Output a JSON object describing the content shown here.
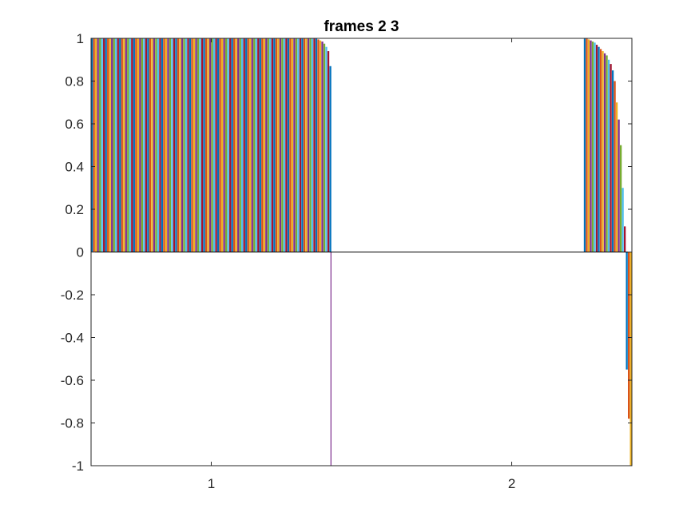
{
  "chart_data": {
    "type": "bar",
    "title": "frames 2 3",
    "xlabel": "",
    "ylabel": "",
    "xlim": [
      0.6,
      2.4
    ],
    "ylim": [
      -1,
      1
    ],
    "xticks": [
      1,
      2
    ],
    "xtick_labels": [
      "1",
      "2"
    ],
    "yticks": [
      -1,
      -0.8,
      -0.6,
      -0.4,
      -0.2,
      0,
      0.2,
      0.4,
      0.6,
      0.8,
      1
    ],
    "ytick_labels": [
      "-1",
      "-0.8",
      "-0.6",
      "-0.4",
      "-0.2",
      "0",
      "0.2",
      "0.4",
      "0.6",
      "0.8",
      "1"
    ],
    "grid": false,
    "legend": "none",
    "colors": [
      "#0072BD",
      "#D95319",
      "#EDB120",
      "#7E2F8E",
      "#77AC30",
      "#4DBEEE",
      "#A2142F"
    ],
    "groups": [
      {
        "category": "1",
        "x_range": [
          0.6,
          1.4
        ],
        "bar_count": 120,
        "plateau_value": 1.0,
        "tail_values": [
          0.995,
          0.99,
          0.985,
          0.975,
          0.96,
          0.94,
          0.87
        ],
        "negative_values": [
          -1.0
        ]
      },
      {
        "category": "2",
        "x_range": [
          2.24,
          2.4
        ],
        "bar_count": 24,
        "values": [
          1.0,
          1.0,
          0.995,
          0.99,
          0.985,
          0.98,
          0.97,
          0.96,
          0.95,
          0.94,
          0.93,
          0.92,
          0.9,
          0.88,
          0.85,
          0.8,
          0.7,
          0.62,
          0.5,
          0.3,
          0.12,
          -0.55,
          -0.78,
          -1.0
        ]
      }
    ]
  }
}
